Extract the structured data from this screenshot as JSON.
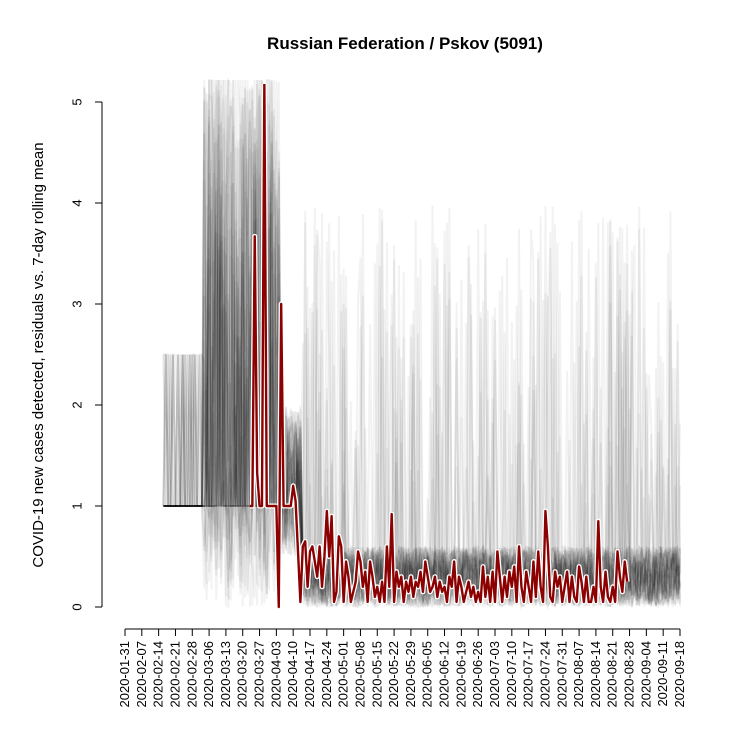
{
  "chart_data": {
    "type": "line",
    "title": "Russian Federation / Pskov (5091)",
    "xlabel": "",
    "ylabel": "COVID-19 new cases detected, residuals vs. 7-day rolling mean",
    "x_start": "2020-01-31",
    "x_end": "2020-09-18",
    "ylim": [
      0,
      5
    ],
    "yticks": [
      0,
      1,
      2,
      3,
      4,
      5
    ],
    "xtick_labels": [
      "2020-01-31",
      "2020-02-07",
      "2020-02-14",
      "2020-02-21",
      "2020-02-28",
      "2020-03-06",
      "2020-03-13",
      "2020-03-20",
      "2020-03-27",
      "2020-04-03",
      "2020-04-10",
      "2020-04-17",
      "2020-04-24",
      "2020-05-01",
      "2020-05-08",
      "2020-05-15",
      "2020-05-22",
      "2020-05-29",
      "2020-06-05",
      "2020-06-12",
      "2020-06-19",
      "2020-06-26",
      "2020-07-03",
      "2020-07-10",
      "2020-07-17",
      "2020-07-24",
      "2020-07-31",
      "2020-08-07",
      "2020-08-14",
      "2020-08-21",
      "2020-08-28",
      "2020-09-04",
      "2020-09-11",
      "2020-09-18"
    ],
    "grid": false,
    "series": [
      {
        "color": "#8b0000",
        "role": "highlighted region",
        "points": [
          {
            "x": "2020-03-23",
            "y": 1.0
          },
          {
            "x": "2020-03-24",
            "y": 1.0
          },
          {
            "x": "2020-03-25",
            "y": 3.67
          },
          {
            "x": "2020-03-26",
            "y": 1.33
          },
          {
            "x": "2020-03-27",
            "y": 1.0
          },
          {
            "x": "2020-03-28",
            "y": 1.0
          },
          {
            "x": "2020-03-29",
            "y": 5.2
          },
          {
            "x": "2020-03-30",
            "y": 1.0
          },
          {
            "x": "2020-03-31",
            "y": 1.0
          },
          {
            "x": "2020-04-01",
            "y": 1.0
          },
          {
            "x": "2020-04-02",
            "y": 1.0
          },
          {
            "x": "2020-04-03",
            "y": 1.0
          },
          {
            "x": "2020-04-04",
            "y": 0.0
          },
          {
            "x": "2020-04-05",
            "y": 3.0
          },
          {
            "x": "2020-04-06",
            "y": 1.0
          },
          {
            "x": "2020-04-07",
            "y": 1.0
          },
          {
            "x": "2020-04-08",
            "y": 1.0
          },
          {
            "x": "2020-04-09",
            "y": 1.0
          },
          {
            "x": "2020-04-10",
            "y": 1.2
          },
          {
            "x": "2020-04-11",
            "y": 1.05
          },
          {
            "x": "2020-04-12",
            "y": 0.55
          },
          {
            "x": "2020-04-13",
            "y": 0.05
          },
          {
            "x": "2020-04-14",
            "y": 0.6
          },
          {
            "x": "2020-04-15",
            "y": 0.65
          },
          {
            "x": "2020-04-16",
            "y": 0.2
          },
          {
            "x": "2020-04-17",
            "y": 0.55
          },
          {
            "x": "2020-04-18",
            "y": 0.6
          },
          {
            "x": "2020-04-19",
            "y": 0.45
          },
          {
            "x": "2020-04-20",
            "y": 0.3
          },
          {
            "x": "2020-04-21",
            "y": 0.6
          },
          {
            "x": "2020-04-22",
            "y": 0.2
          },
          {
            "x": "2020-04-23",
            "y": 0.5
          },
          {
            "x": "2020-04-24",
            "y": 0.95
          },
          {
            "x": "2020-04-25",
            "y": 0.5
          },
          {
            "x": "2020-04-26",
            "y": 0.9
          },
          {
            "x": "2020-04-27",
            "y": 0.05
          },
          {
            "x": "2020-04-28",
            "y": 0.15
          },
          {
            "x": "2020-04-29",
            "y": 0.7
          },
          {
            "x": "2020-04-30",
            "y": 0.6
          },
          {
            "x": "2020-05-01",
            "y": 0.05
          },
          {
            "x": "2020-05-02",
            "y": 0.45
          },
          {
            "x": "2020-05-03",
            "y": 0.3
          },
          {
            "x": "2020-05-04",
            "y": 0.05
          },
          {
            "x": "2020-05-05",
            "y": 0.15
          },
          {
            "x": "2020-05-06",
            "y": 0.25
          },
          {
            "x": "2020-05-07",
            "y": 0.55
          },
          {
            "x": "2020-05-08",
            "y": 0.45
          },
          {
            "x": "2020-05-09",
            "y": 0.2
          },
          {
            "x": "2020-05-10",
            "y": 0.35
          },
          {
            "x": "2020-05-11",
            "y": 0.05
          },
          {
            "x": "2020-05-12",
            "y": 0.45
          },
          {
            "x": "2020-05-13",
            "y": 0.3
          },
          {
            "x": "2020-05-14",
            "y": 0.1
          },
          {
            "x": "2020-05-15",
            "y": 0.2
          },
          {
            "x": "2020-05-16",
            "y": 0.05
          },
          {
            "x": "2020-05-17",
            "y": 0.25
          },
          {
            "x": "2020-05-18",
            "y": 0.05
          },
          {
            "x": "2020-05-19",
            "y": 0.6
          },
          {
            "x": "2020-05-20",
            "y": 0.2
          },
          {
            "x": "2020-05-21",
            "y": 0.92
          },
          {
            "x": "2020-05-22",
            "y": 0.05
          },
          {
            "x": "2020-05-23",
            "y": 0.35
          },
          {
            "x": "2020-05-24",
            "y": 0.2
          },
          {
            "x": "2020-05-25",
            "y": 0.3
          },
          {
            "x": "2020-05-26",
            "y": 0.05
          },
          {
            "x": "2020-05-27",
            "y": 0.25
          },
          {
            "x": "2020-05-28",
            "y": 0.15
          },
          {
            "x": "2020-05-29",
            "y": 0.3
          },
          {
            "x": "2020-05-30",
            "y": 0.1
          },
          {
            "x": "2020-05-31",
            "y": 0.25
          },
          {
            "x": "2020-06-01",
            "y": 0.2
          },
          {
            "x": "2020-06-02",
            "y": 0.35
          },
          {
            "x": "2020-06-03",
            "y": 0.15
          },
          {
            "x": "2020-06-04",
            "y": 0.45
          },
          {
            "x": "2020-06-05",
            "y": 0.3
          },
          {
            "x": "2020-06-06",
            "y": 0.15
          },
          {
            "x": "2020-06-07",
            "y": 0.2
          },
          {
            "x": "2020-06-08",
            "y": 0.3
          },
          {
            "x": "2020-06-09",
            "y": 0.1
          },
          {
            "x": "2020-06-10",
            "y": 0.25
          },
          {
            "x": "2020-06-11",
            "y": 0.15
          },
          {
            "x": "2020-06-12",
            "y": 0.2
          },
          {
            "x": "2020-06-13",
            "y": 0.05
          },
          {
            "x": "2020-06-14",
            "y": 0.3
          },
          {
            "x": "2020-06-15",
            "y": 0.2
          },
          {
            "x": "2020-06-16",
            "y": 0.45
          },
          {
            "x": "2020-06-17",
            "y": 0.05
          },
          {
            "x": "2020-06-18",
            "y": 0.3
          },
          {
            "x": "2020-06-19",
            "y": 0.2
          },
          {
            "x": "2020-06-20",
            "y": 0.05
          },
          {
            "x": "2020-06-21",
            "y": 0.15
          },
          {
            "x": "2020-06-22",
            "y": 0.25
          },
          {
            "x": "2020-06-23",
            "y": 0.1
          },
          {
            "x": "2020-06-24",
            "y": 0.2
          },
          {
            "x": "2020-06-25",
            "y": 0.05
          },
          {
            "x": "2020-06-26",
            "y": 0.15
          },
          {
            "x": "2020-06-27",
            "y": 0.05
          },
          {
            "x": "2020-06-28",
            "y": 0.4
          },
          {
            "x": "2020-06-29",
            "y": 0.1
          },
          {
            "x": "2020-06-30",
            "y": 0.3
          },
          {
            "x": "2020-07-01",
            "y": 0.05
          },
          {
            "x": "2020-07-02",
            "y": 0.35
          },
          {
            "x": "2020-07-03",
            "y": 0.05
          },
          {
            "x": "2020-07-04",
            "y": 0.55
          },
          {
            "x": "2020-07-05",
            "y": 0.3
          },
          {
            "x": "2020-07-06",
            "y": 0.05
          },
          {
            "x": "2020-07-07",
            "y": 0.3
          },
          {
            "x": "2020-07-08",
            "y": 0.1
          },
          {
            "x": "2020-07-09",
            "y": 0.35
          },
          {
            "x": "2020-07-10",
            "y": 0.2
          },
          {
            "x": "2020-07-11",
            "y": 0.4
          },
          {
            "x": "2020-07-12",
            "y": 0.05
          },
          {
            "x": "2020-07-13",
            "y": 0.6
          },
          {
            "x": "2020-07-14",
            "y": 0.2
          },
          {
            "x": "2020-07-15",
            "y": 0.05
          },
          {
            "x": "2020-07-16",
            "y": 0.35
          },
          {
            "x": "2020-07-17",
            "y": 0.2
          },
          {
            "x": "2020-07-18",
            "y": 0.05
          },
          {
            "x": "2020-07-19",
            "y": 0.45
          },
          {
            "x": "2020-07-20",
            "y": 0.1
          },
          {
            "x": "2020-07-21",
            "y": 0.55
          },
          {
            "x": "2020-07-22",
            "y": 0.2
          },
          {
            "x": "2020-07-23",
            "y": 0.05
          },
          {
            "x": "2020-07-24",
            "y": 0.95
          },
          {
            "x": "2020-07-25",
            "y": 0.6
          },
          {
            "x": "2020-07-26",
            "y": 0.1
          },
          {
            "x": "2020-07-27",
            "y": 0.05
          },
          {
            "x": "2020-07-28",
            "y": 0.35
          },
          {
            "x": "2020-07-29",
            "y": 0.2
          },
          {
            "x": "2020-07-30",
            "y": 0.3
          },
          {
            "x": "2020-07-31",
            "y": 0.05
          },
          {
            "x": "2020-08-01",
            "y": 0.2
          },
          {
            "x": "2020-08-02",
            "y": 0.35
          },
          {
            "x": "2020-08-03",
            "y": 0.05
          },
          {
            "x": "2020-08-04",
            "y": 0.3
          },
          {
            "x": "2020-08-05",
            "y": 0.1
          },
          {
            "x": "2020-08-06",
            "y": 0.05
          },
          {
            "x": "2020-08-07",
            "y": 0.4
          },
          {
            "x": "2020-08-08",
            "y": 0.25
          },
          {
            "x": "2020-08-09",
            "y": 0.05
          },
          {
            "x": "2020-08-10",
            "y": 0.3
          },
          {
            "x": "2020-08-11",
            "y": 0.05
          },
          {
            "x": "2020-08-12",
            "y": 0.05
          },
          {
            "x": "2020-08-13",
            "y": 0.2
          },
          {
            "x": "2020-08-14",
            "y": 0.05
          },
          {
            "x": "2020-08-15",
            "y": 0.85
          },
          {
            "x": "2020-08-16",
            "y": 0.2
          },
          {
            "x": "2020-08-17",
            "y": 0.05
          },
          {
            "x": "2020-08-18",
            "y": 0.35
          },
          {
            "x": "2020-08-19",
            "y": 0.1
          },
          {
            "x": "2020-08-20",
            "y": 0.05
          },
          {
            "x": "2020-08-21",
            "y": 0.2
          },
          {
            "x": "2020-08-22",
            "y": 0.05
          },
          {
            "x": "2020-08-23",
            "y": 0.55
          },
          {
            "x": "2020-08-24",
            "y": 0.3
          },
          {
            "x": "2020-08-25",
            "y": 0.15
          },
          {
            "x": "2020-08-26",
            "y": 0.45
          },
          {
            "x": "2020-08-27",
            "y": 0.25
          }
        ]
      }
    ]
  }
}
